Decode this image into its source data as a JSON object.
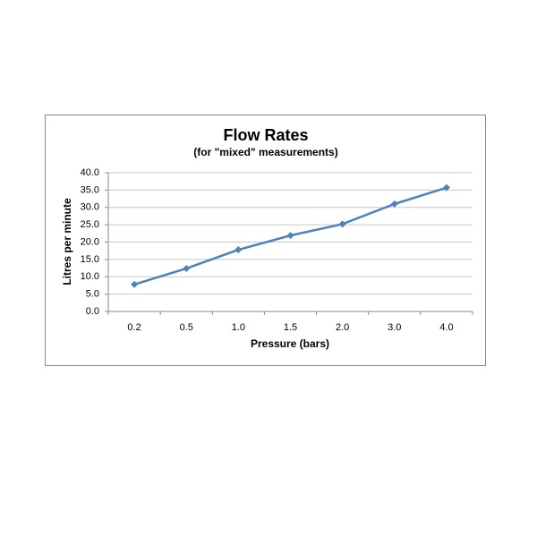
{
  "chart_data": {
    "type": "line",
    "title": "Flow Rates",
    "subtitle": "(for \"mixed\" measurements)",
    "x_label": "Pressure (bars)",
    "y_label": "Litres per minute",
    "categories": [
      "0.2",
      "0.5",
      "1.0",
      "1.5",
      "2.0",
      "3.0",
      "4.0"
    ],
    "series": [
      {
        "color": "#4f81bd",
        "values": [
          7.8,
          12.4,
          17.8,
          21.9,
          25.2,
          31.0,
          35.7
        ]
      }
    ],
    "ylim": [
      0,
      40
    ],
    "yticks": [
      {
        "value": 0,
        "label": "0.0"
      },
      {
        "value": 5,
        "label": "5.0"
      },
      {
        "value": 10,
        "label": "10.0"
      },
      {
        "value": 15,
        "label": "15.0"
      },
      {
        "value": 20,
        "label": "20.0"
      },
      {
        "value": 25,
        "label": "25.0"
      },
      {
        "value": 30,
        "label": "30.0"
      },
      {
        "value": 35,
        "label": "35.0"
      },
      {
        "value": 40,
        "label": "40.0"
      }
    ],
    "grid": true
  }
}
